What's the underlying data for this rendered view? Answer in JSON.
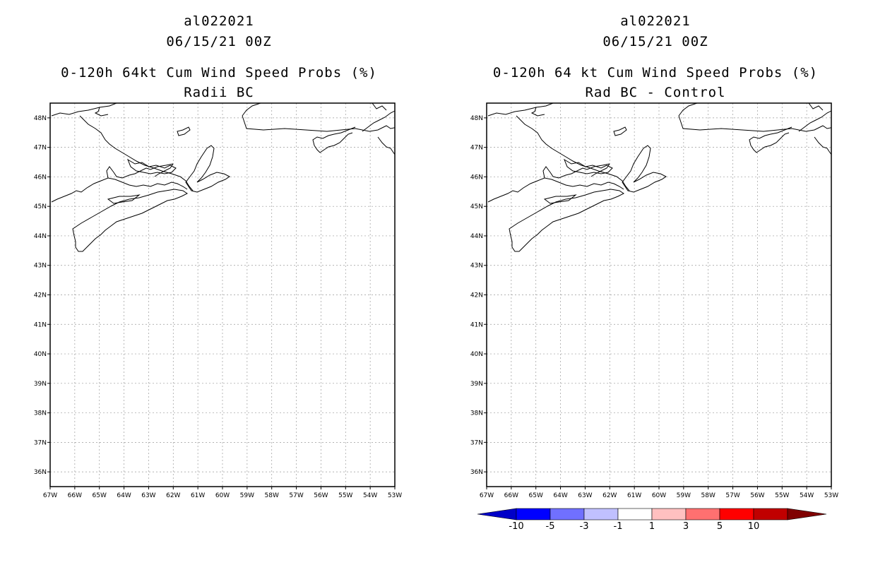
{
  "left_panel": {
    "storm_id": "al022021",
    "datetime": "06/15/21 00Z",
    "title": "0-120h 64kt Cum Wind Speed Probs (%)",
    "subtitle": "Radii BC"
  },
  "right_panel": {
    "storm_id": "al022021",
    "datetime": "06/15/21 00Z",
    "title": "0-120h 64 kt Cum Wind Speed Probs (%)",
    "subtitle": "Rad BC - Control"
  },
  "map": {
    "lon_range": [
      -67,
      -53
    ],
    "lat_range": [
      35.5,
      48.5
    ],
    "lon_ticks": [
      "67W",
      "66W",
      "65W",
      "64W",
      "63W",
      "62W",
      "61W",
      "60W",
      "59W",
      "58W",
      "57W",
      "56W",
      "55W",
      "54W",
      "53W"
    ],
    "lat_ticks": [
      "48N",
      "47N",
      "46N",
      "45N",
      "44N",
      "43N",
      "42N",
      "41N",
      "40N",
      "39N",
      "38N",
      "37N",
      "36N"
    ]
  },
  "colorbar": {
    "labels": [
      "-10",
      "-5",
      "-3",
      "-1",
      "1",
      "3",
      "5",
      "10"
    ],
    "colors": [
      "#0000c8",
      "#0000ff",
      "#7070ff",
      "#c0c0ff",
      "#ffffff",
      "#ffc0c0",
      "#ff7070",
      "#ff0000",
      "#c00000",
      "#800000"
    ]
  }
}
